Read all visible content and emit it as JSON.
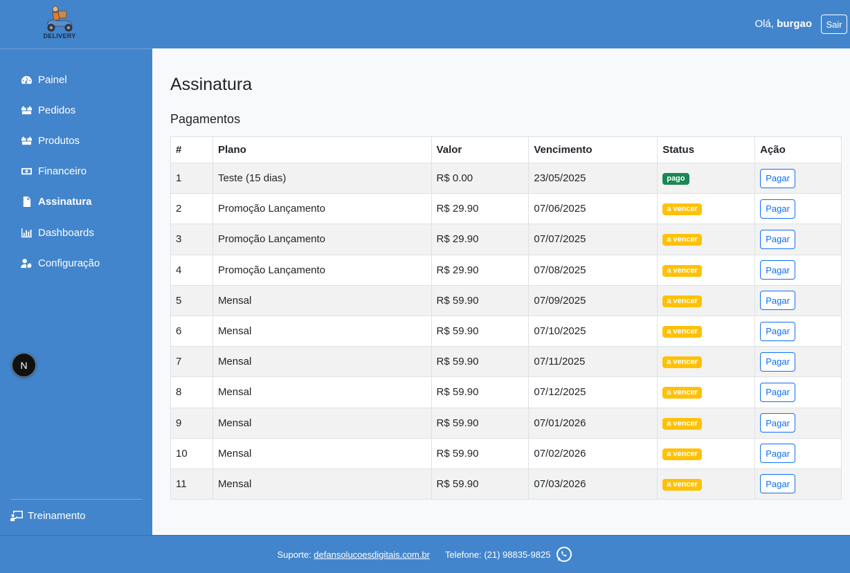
{
  "header": {
    "logo_text": "DELIVERY",
    "greeting_prefix": "Olá,",
    "username": "burgao",
    "logout_label": "Sair"
  },
  "sidebar": {
    "items": [
      {
        "label": "Painel",
        "icon": "dashboard-icon"
      },
      {
        "label": "Pedidos",
        "icon": "boxes-icon"
      },
      {
        "label": "Produtos",
        "icon": "boxes-icon"
      },
      {
        "label": "Financeiro",
        "icon": "money-icon"
      },
      {
        "label": "Assinatura",
        "icon": "document-icon",
        "active": true
      },
      {
        "label": "Dashboards",
        "icon": "bar-chart-icon"
      },
      {
        "label": "Configuração",
        "icon": "user-gear-icon"
      }
    ],
    "badge_letter": "N",
    "training_label": "Treinamento"
  },
  "main": {
    "title": "Assinatura",
    "section_title": "Pagamentos",
    "table": {
      "headers": [
        "#",
        "Plano",
        "Valor",
        "Vencimento",
        "Status",
        "Ação"
      ],
      "rows": [
        {
          "n": "1",
          "plano": "Teste (15 dias)",
          "valor": "R$ 0.00",
          "vencimento": "23/05/2025",
          "status": "pago",
          "acao": "Pagar"
        },
        {
          "n": "2",
          "plano": "Promoção Lançamento",
          "valor": "R$ 29.90",
          "vencimento": "07/06/2025",
          "status": "a vencer",
          "acao": "Pagar"
        },
        {
          "n": "3",
          "plano": "Promoção Lançamento",
          "valor": "R$ 29.90",
          "vencimento": "07/07/2025",
          "status": "a vencer",
          "acao": "Pagar"
        },
        {
          "n": "4",
          "plano": "Promoção Lançamento",
          "valor": "R$ 29.90",
          "vencimento": "07/08/2025",
          "status": "a vencer",
          "acao": "Pagar"
        },
        {
          "n": "5",
          "plano": "Mensal",
          "valor": "R$ 59.90",
          "vencimento": "07/09/2025",
          "status": "a vencer",
          "acao": "Pagar"
        },
        {
          "n": "6",
          "plano": "Mensal",
          "valor": "R$ 59.90",
          "vencimento": "07/10/2025",
          "status": "a vencer",
          "acao": "Pagar"
        },
        {
          "n": "7",
          "plano": "Mensal",
          "valor": "R$ 59.90",
          "vencimento": "07/11/2025",
          "status": "a vencer",
          "acao": "Pagar"
        },
        {
          "n": "8",
          "plano": "Mensal",
          "valor": "R$ 59.90",
          "vencimento": "07/12/2025",
          "status": "a vencer",
          "acao": "Pagar"
        },
        {
          "n": "9",
          "plano": "Mensal",
          "valor": "R$ 59.90",
          "vencimento": "07/01/2026",
          "status": "a vencer",
          "acao": "Pagar"
        },
        {
          "n": "10",
          "plano": "Mensal",
          "valor": "R$ 59.90",
          "vencimento": "07/02/2026",
          "status": "a vencer",
          "acao": "Pagar"
        },
        {
          "n": "11",
          "plano": "Mensal",
          "valor": "R$ 59.90",
          "vencimento": "07/03/2026",
          "status": "a vencer",
          "acao": "Pagar"
        }
      ]
    }
  },
  "footer": {
    "support_label": "Suporte:",
    "support_link": "defansolucoesdigitais.com.br",
    "phone_label": "Telefone: (21) 98835-9825"
  },
  "colors": {
    "primary": "#4385cc",
    "paid": "#198754",
    "pending": "#ffc107",
    "button": "#0d6efd"
  }
}
